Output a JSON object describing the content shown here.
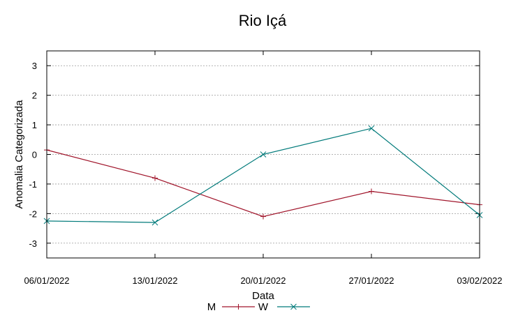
{
  "chart_data": {
    "type": "line",
    "title": "Rio Içá",
    "xlabel": "Data",
    "ylabel": "Anomalia Categorizada",
    "categories": [
      "06/01/2022",
      "13/01/2022",
      "20/01/2022",
      "27/01/2022",
      "03/02/2022"
    ],
    "yticks": [
      "3",
      "2",
      "1",
      "0",
      "-1",
      "-2",
      "-3"
    ],
    "ylim": [
      -3.5,
      3.5
    ],
    "grid": true,
    "legend_position": "bottom",
    "series": [
      {
        "name": "M",
        "color": "#a0142a",
        "marker": "plus",
        "values": [
          0.15,
          -0.8,
          -2.1,
          -1.25,
          -1.7
        ]
      },
      {
        "name": "W",
        "color": "#007a7a",
        "marker": "x",
        "values": [
          -2.25,
          -2.3,
          0.0,
          0.88,
          -2.05
        ]
      }
    ]
  }
}
